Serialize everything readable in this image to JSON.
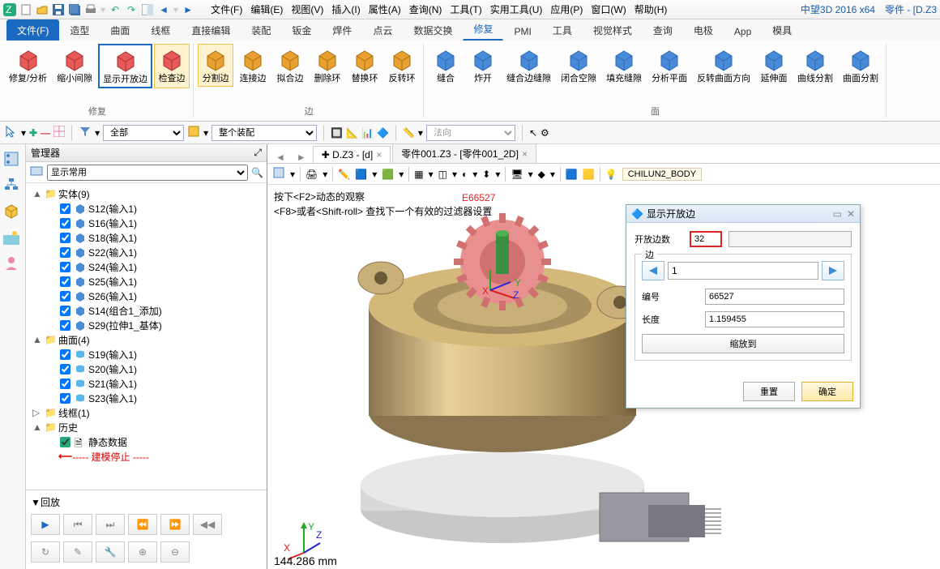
{
  "titlebar": {
    "app_name": "中望3D 2016  x64",
    "doc_title": "零件 - [D.Z3",
    "menus": [
      "文件(F)",
      "编辑(E)",
      "视图(V)",
      "插入(I)",
      "属性(A)",
      "查询(N)",
      "工具(T)",
      "实用工具(U)",
      "应用(P)",
      "窗口(W)",
      "帮助(H)"
    ]
  },
  "ribbon_tabs": [
    "文件(F)",
    "造型",
    "曲面",
    "线框",
    "直接编辑",
    "装配",
    "钣金",
    "焊件",
    "点云",
    "数据交换",
    "修复",
    "PMI",
    "工具",
    "视觉样式",
    "查询",
    "电极",
    "App",
    "模具"
  ],
  "ribbon_active_tab": "文件(F)",
  "ribbon_selected_tab": "修复",
  "ribbon": {
    "group1": {
      "label": "修复",
      "btns": [
        "修复/分析",
        "缩小间隙",
        "显示开放边",
        "检查边"
      ]
    },
    "group2": {
      "label": "边",
      "btns": [
        "分割边",
        "连接边",
        "拟合边",
        "删除环",
        "替换环",
        "反转环"
      ]
    },
    "group3": {
      "label": "面",
      "btns": [
        "缝合",
        "炸开",
        "缝合边缝隙",
        "闭合空隙",
        "填充缝隙",
        "分析平面",
        "反转曲面方向",
        "延伸面",
        "曲线分割",
        "曲面分割"
      ]
    }
  },
  "highlighted_btn": "显示开放边",
  "yellow_btns": [
    "检查边",
    "分割边"
  ],
  "toolbar2": {
    "combo1": "全部",
    "combo2": "整个装配",
    "combo3": "法向"
  },
  "manager": {
    "title": "管理器",
    "filter": "显示常用",
    "tree": [
      {
        "type": "folder",
        "exp": "▲",
        "label": "实体(9)",
        "indent": 0,
        "icon": "folder"
      },
      {
        "type": "item",
        "label": "S12(输入1)",
        "indent": 2,
        "chk": true,
        "icon": "solid"
      },
      {
        "type": "item",
        "label": "S16(输入1)",
        "indent": 2,
        "chk": true,
        "icon": "solid"
      },
      {
        "type": "item",
        "label": "S18(输入1)",
        "indent": 2,
        "chk": true,
        "icon": "solid"
      },
      {
        "type": "item",
        "label": "S22(输入1)",
        "indent": 2,
        "chk": true,
        "icon": "solid"
      },
      {
        "type": "item",
        "label": "S24(输入1)",
        "indent": 2,
        "chk": true,
        "icon": "solid"
      },
      {
        "type": "item",
        "label": "S25(输入1)",
        "indent": 2,
        "chk": true,
        "icon": "solid"
      },
      {
        "type": "item",
        "label": "S26(输入1)",
        "indent": 2,
        "chk": true,
        "icon": "solid"
      },
      {
        "type": "item",
        "label": "S14(组合1_添加)",
        "indent": 2,
        "chk": true,
        "icon": "solid"
      },
      {
        "type": "item",
        "label": "S29(拉伸1_基体)",
        "indent": 2,
        "chk": true,
        "icon": "solid"
      },
      {
        "type": "folder",
        "exp": "▲",
        "label": "曲面(4)",
        "indent": 0,
        "icon": "folder"
      },
      {
        "type": "item",
        "label": "S19(输入1)",
        "indent": 2,
        "chk": true,
        "icon": "surface"
      },
      {
        "type": "item",
        "label": "S20(输入1)",
        "indent": 2,
        "chk": true,
        "icon": "surface"
      },
      {
        "type": "item",
        "label": "S21(输入1)",
        "indent": 2,
        "chk": true,
        "icon": "surface"
      },
      {
        "type": "item",
        "label": "S23(输入1)",
        "indent": 2,
        "chk": true,
        "icon": "surface"
      },
      {
        "type": "folder",
        "exp": "▷",
        "label": "线框(1)",
        "indent": 0,
        "icon": "folder"
      },
      {
        "type": "folder",
        "exp": "▲",
        "label": "历史",
        "indent": 0,
        "icon": "folder"
      },
      {
        "type": "item",
        "label": "静态数据",
        "indent": 2,
        "chk": true,
        "icon": "data",
        "green": true
      },
      {
        "type": "item",
        "label": "----- 建模停止 -----",
        "indent": 2,
        "red": true,
        "arrow": true
      }
    ]
  },
  "playback": {
    "title": "回放"
  },
  "doc_tabs": [
    {
      "label": "✚ D.Z3 - [d]",
      "active": true
    },
    {
      "label": "零件001.Z3 - [零件001_2D]",
      "active": false
    }
  ],
  "view_toolbar": {
    "body_name": "CHILUN2_BODY"
  },
  "hints": [
    "按下<F2>动态的观察",
    "<F8>或者<Shift-roll> 查找下一个有效的过滤器设置"
  ],
  "edge_label": "E66527",
  "measure": "144.286 mm",
  "dialog": {
    "title": "显示开放边",
    "open_edge_count_label": "开放边数",
    "open_edge_count": "32",
    "group_label": "边",
    "nav_value": "1",
    "id_label": "编号",
    "id_value": "66527",
    "length_label": "长度",
    "length_value": "1.159455",
    "zoom_btn": "缩放到",
    "reset_btn": "重置",
    "ok_btn": "确定"
  },
  "colors": {
    "accent": "#1a6ac1",
    "highlight_bg": "#fff3cf",
    "highlight_border": "#f0c04a",
    "red": "#d22222"
  }
}
